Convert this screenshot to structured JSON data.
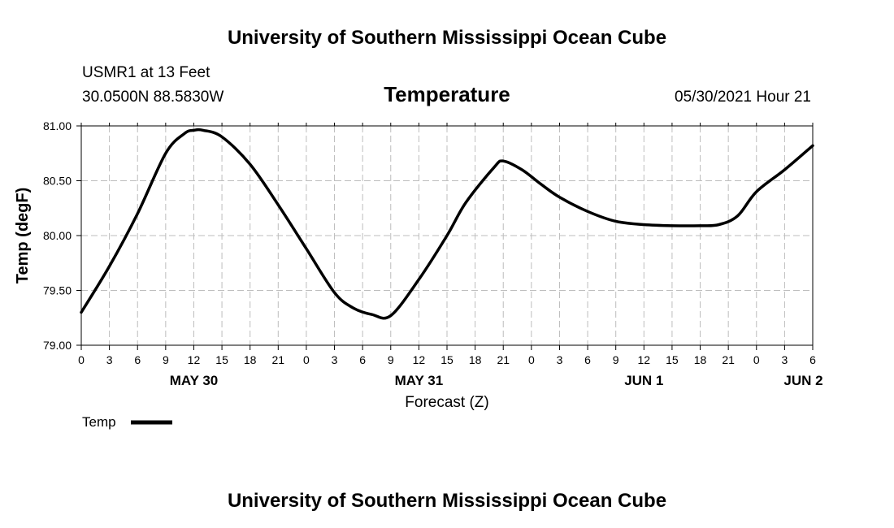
{
  "header": {
    "title": "University of Southern Mississippi Ocean Cube",
    "station": "USMR1 at 13 Feet",
    "coords": "30.0500N  88.5830W",
    "variable": "Temperature",
    "timestamp": "05/30/2021 Hour 21"
  },
  "footer": {
    "title": "University of Southern Mississippi Ocean Cube"
  },
  "chart_data": {
    "type": "line",
    "title": "Temperature",
    "xlabel": "Forecast (Z)",
    "ylabel": "Temp (degF)",
    "xlim": [
      0,
      78
    ],
    "ylim": [
      79.0,
      81.0
    ],
    "grid": true,
    "legend_position": "bottom-left",
    "y_ticks": [
      79.0,
      79.5,
      80.0,
      80.5,
      81.0
    ],
    "y_tick_labels": [
      "79.00",
      "79.50",
      "80.00",
      "80.50",
      "81.00"
    ],
    "x_ticks": [
      0,
      3,
      6,
      9,
      12,
      15,
      18,
      21,
      24,
      27,
      30,
      33,
      36,
      39,
      42,
      45,
      48,
      51,
      54,
      57,
      60,
      63,
      66,
      69,
      72,
      75,
      78
    ],
    "x_tick_labels": [
      "0",
      "3",
      "6",
      "9",
      "12",
      "15",
      "18",
      "21",
      "0",
      "3",
      "6",
      "9",
      "12",
      "15",
      "18",
      "21",
      "0",
      "3",
      "6",
      "9",
      "12",
      "15",
      "18",
      "21",
      "0",
      "3",
      "6"
    ],
    "date_labels": [
      {
        "hour": 12,
        "label": "MAY 30"
      },
      {
        "hour": 36,
        "label": "MAY 31"
      },
      {
        "hour": 60,
        "label": "JUN 1"
      },
      {
        "hour": 77,
        "label": "JUN 2"
      }
    ],
    "series": [
      {
        "name": "Temp",
        "x": [
          0,
          3,
          6,
          9,
          11,
          12,
          13,
          15,
          18,
          21,
          24,
          27,
          29,
          31,
          33,
          36,
          39,
          41,
          44,
          45,
          47,
          49,
          51,
          54,
          57,
          60,
          63,
          66,
          68,
          70,
          72,
          75,
          78
        ],
        "values": [
          79.3,
          79.72,
          80.2,
          80.75,
          80.93,
          80.96,
          80.96,
          80.9,
          80.65,
          80.28,
          79.88,
          79.48,
          79.34,
          79.28,
          79.27,
          79.6,
          80.0,
          80.3,
          80.62,
          80.68,
          80.6,
          80.47,
          80.35,
          80.22,
          80.13,
          80.1,
          80.09,
          80.09,
          80.1,
          80.18,
          80.4,
          80.6,
          80.82
        ]
      }
    ]
  }
}
